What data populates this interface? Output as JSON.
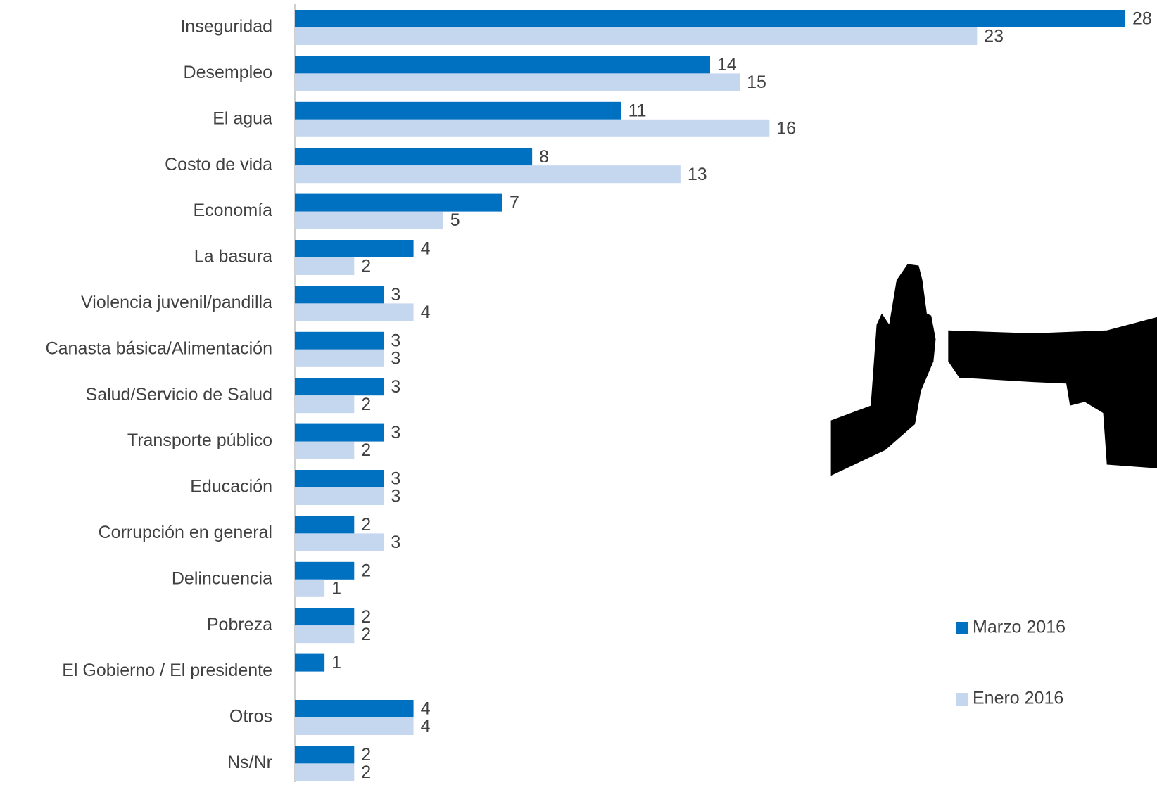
{
  "chart_data": {
    "type": "bar",
    "orientation": "horizontal",
    "categories": [
      "Inseguridad",
      "Desempleo",
      "El agua",
      "Costo de vida",
      "Economía",
      "La basura",
      "Violencia juvenil/pandilla",
      "Canasta básica/Alimentación",
      "Salud/Servicio de Salud ",
      "Transporte público",
      "Educación",
      "Corrupción en general",
      "Delincuencia",
      "Pobreza",
      "El Gobierno / El presidente",
      "Otros",
      "Ns/Nr"
    ],
    "series": [
      {
        "name": "Marzo 2016",
        "color": "#0070c0",
        "values": [
          28,
          14,
          11,
          8,
          7,
          4,
          3,
          3,
          3,
          3,
          3,
          2,
          2,
          2,
          1,
          4,
          2
        ]
      },
      {
        "name": "Enero 2016",
        "color": "#c5d6ef",
        "values": [
          23,
          15,
          16,
          13,
          5,
          2,
          4,
          3,
          2,
          2,
          3,
          3,
          1,
          2,
          null,
          4,
          2
        ]
      }
    ]
  }
}
